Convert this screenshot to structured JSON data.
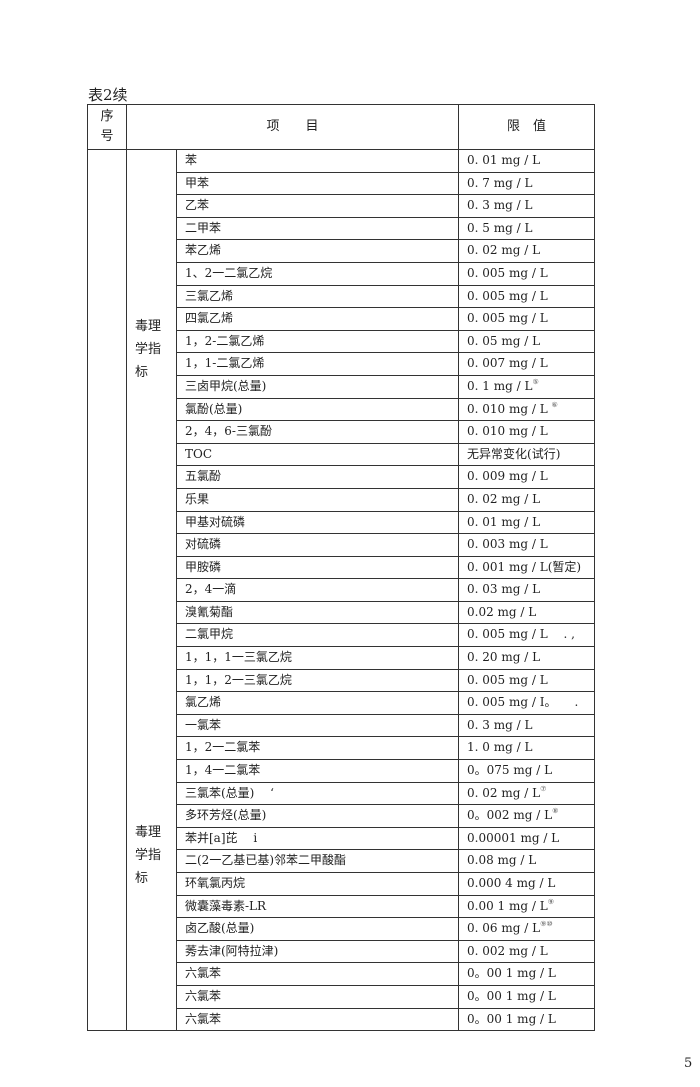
{
  "caption": "表2续",
  "page_number": "5",
  "header": {
    "seq": "序号",
    "item": "项　　目",
    "limit": "限　值"
  },
  "groups": [
    {
      "category": "毒理学指标",
      "rows": [
        {
          "item": "苯",
          "limit": "0. 01 mg / L",
          "note": ""
        },
        {
          "item": "甲苯",
          "limit": "0. 7 mg / L",
          "note": ""
        },
        {
          "item": "乙苯",
          "limit": "0. 3 mg / L",
          "note": ""
        },
        {
          "item": "二甲苯",
          "limit": "0. 5 mg / L",
          "note": ""
        },
        {
          "item": "苯乙烯",
          "limit": "0. 02 mg / L",
          "note": ""
        },
        {
          "item": " 1、2一二氯乙烷",
          "limit": "0. 005 mg / L",
          "note": ""
        },
        {
          "item": "三氯乙烯",
          "limit": "0. 005 mg / L",
          "note": ""
        },
        {
          "item": "四氯乙烯",
          "limit": "0. 005 mg / L",
          "note": ""
        },
        {
          "item": " 1，2-二氯乙烯",
          "limit": "0. 05 mg / L",
          "note": ""
        },
        {
          "item": " 1，1-二氯乙烯",
          "limit": "0. 007 mg / L",
          "note": ""
        },
        {
          "item": "三卤甲烷(总量)",
          "limit": "0. 1 mg / L",
          "note": "⑤"
        },
        {
          "item": "氯酚(总量)",
          "limit": "0. 010 mg / L ",
          "note": "⑥"
        },
        {
          "item": " 2，4，6-三氯酚",
          "limit": "0. 010 mg / L",
          "note": ""
        },
        {
          "item": " TOC",
          "limit": "无异常变化(试行)",
          "note": ""
        },
        {
          "item": "五氯酚",
          "limit": "0. 009 mg / L",
          "note": ""
        },
        {
          "item": "乐果",
          "limit": "0. 02 mg / L",
          "note": ""
        },
        {
          "item": "甲基对硫磷",
          "limit": "0. 01 mg / L",
          "note": ""
        },
        {
          "item": "对硫磷",
          "limit": "0. 003 mg / L",
          "note": ""
        },
        {
          "item": "甲胺磷",
          "limit": "0. 001 mg / L(暂定)",
          "note": ""
        },
        {
          "item": "2，4一滴",
          "limit": "0. 03 mg / L",
          "note": ""
        }
      ]
    },
    {
      "category": "毒理学指标",
      "rows": [
        {
          "item": "溴氰菊酯",
          "limit": "0.02 mg / L",
          "note": ""
        },
        {
          "item": "二氯甲烷",
          "limit": "0. 005 mg / L　 . ,",
          "note": ""
        },
        {
          "item": "1，1，1一三氯乙烷",
          "limit": "0. 20 mg / L",
          "note": ""
        },
        {
          "item": " 1，1，2一三氯乙烷",
          "limit": "0. 005 mg / L",
          "note": ""
        },
        {
          "item": "氯乙烯",
          "limit": "0. 005 mg / I。　　.",
          "note": ""
        },
        {
          "item": "一氯苯",
          "limit": "0. 3 mg / L",
          "note": ""
        },
        {
          "item": " 1，2一二氯苯",
          "limit": "1. 0 mg / L",
          "note": ""
        },
        {
          "item": " 1，4一二氯苯",
          "limit": "0。075 mg / L",
          "note": ""
        },
        {
          "item": "三氯苯(总量)　 ‘",
          "limit": "0. 02 mg / L",
          "note": "⑦"
        },
        {
          "item": "多环芳烃(总量)",
          "limit": "0。002 mg / L",
          "note": "⑧"
        },
        {
          "item": "苯并[a]芘　 i",
          "limit": " 0.00001 mg / L",
          "note": ""
        },
        {
          "item": "二(2一乙基已基)邻苯二甲酸酯",
          "limit": "0.08 mg / L",
          "note": ""
        },
        {
          "item": "环氧氯丙烷",
          "limit": "0.000 4 mg / L",
          "note": ""
        },
        {
          "item": "微囊藻毒素-LR",
          "limit": " 0.00 1 mg / L",
          "note": "⑨"
        },
        {
          "item": "卤乙酸(总量)",
          "limit": "0. 06 mg / L",
          "note": "⑨⑩"
        },
        {
          "item": "莠去津(阿特拉津)",
          "limit": "0. 002 mg / L",
          "note": ""
        },
        {
          "item": "六氯苯",
          "limit": "0。00 1 mg / L",
          "note": ""
        },
        {
          "item": "六氯苯",
          "limit": "0。00 1 mg / L",
          "note": ""
        },
        {
          "item": "六氯苯",
          "limit": "0。00 1 mg / L",
          "note": ""
        }
      ]
    }
  ]
}
